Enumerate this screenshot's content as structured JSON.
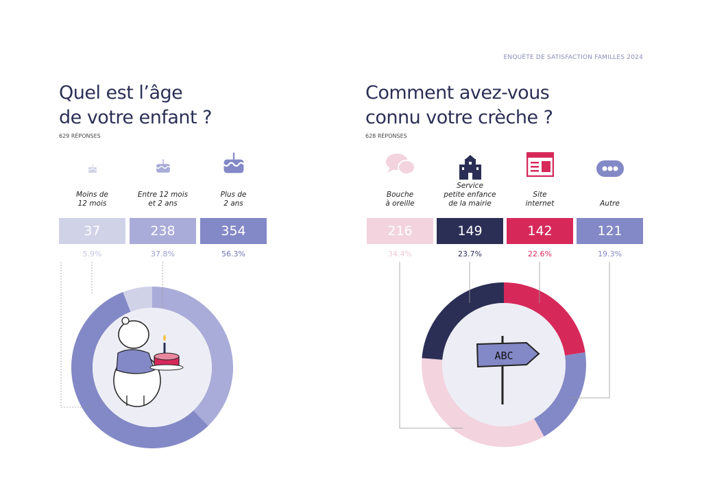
{
  "header": "ENQUÊTE DE SATISFACTION FAMILLES 2024",
  "chart_data": [
    {
      "type": "pie",
      "title_line1": "Quel est l’âge",
      "title_line2": "de votre enfant ?",
      "responses": "629 RÉPONSES",
      "categories": [
        "Moins de 12 mois",
        "Entre 12 mois et 2 ans",
        "Plus de 2 ans"
      ],
      "label_lines": [
        [
          "Moins de",
          "12 mois"
        ],
        [
          "Entre 12 mois",
          "et 2 ans"
        ],
        [
          "Plus de",
          "2 ans"
        ]
      ],
      "values": [
        37,
        238,
        354
      ],
      "percents": [
        "5.9%",
        "37.8%",
        "56.3%"
      ],
      "colors": [
        "#d0d2e8",
        "#a9abd8",
        "#8388c6"
      ],
      "pct_colors": [
        "#c4c6e0",
        "#9a9ccc",
        "#6f74b4"
      ],
      "icons": [
        "cake-small-icon",
        "cake-medium-icon",
        "cake-large-icon"
      ]
    },
    {
      "type": "pie",
      "title_line1": "Comment avez-vous",
      "title_line2": "connu votre crèche ?",
      "responses": "628 RÉPONSES",
      "categories": [
        "Bouche à oreille",
        "Service petite enfance de la mairie",
        "Site internet",
        "Autre"
      ],
      "label_lines": [
        [
          "Bouche",
          "à oreille"
        ],
        [
          "Service",
          "petite enfance",
          "de la mairie"
        ],
        [
          "Site",
          "internet"
        ],
        [
          "Autre"
        ]
      ],
      "values": [
        216,
        149,
        142,
        121
      ],
      "percents": [
        "34.4%",
        "23.7%",
        "22.6%",
        "19.3%"
      ],
      "colors": [
        "#f2d3de",
        "#2b2f55",
        "#d6295a",
        "#8388c6"
      ],
      "pct_colors": [
        "#efc9d6",
        "#2b2f55",
        "#d6295a",
        "#8388c6"
      ],
      "icons": [
        "speech-bubbles-icon",
        "town-hall-icon",
        "website-icon",
        "more-icon"
      ],
      "sign_text": "ABC"
    }
  ]
}
